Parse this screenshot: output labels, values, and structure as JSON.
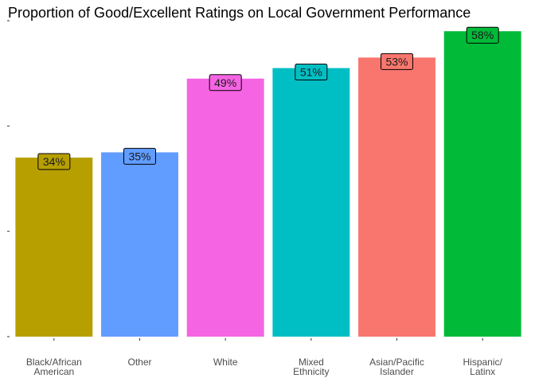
{
  "chart_data": {
    "type": "bar",
    "title": "Proportion of Good/Excellent Ratings on Local Government Performance",
    "xlabel": "",
    "ylabel": "",
    "ylim": [
      0,
      0.6
    ],
    "grid": false,
    "legend": "none",
    "categories": [
      [
        "Black/African",
        "American"
      ],
      [
        "Other"
      ],
      [
        "White"
      ],
      [
        "Mixed",
        "Ethnicity"
      ],
      [
        "Asian/Pacific",
        "Islander"
      ],
      [
        "Hispanic/",
        "Latinx"
      ]
    ],
    "values": [
      0.34,
      0.35,
      0.49,
      0.51,
      0.53,
      0.58
    ],
    "data_labels": [
      "34%",
      "35%",
      "49%",
      "51%",
      "53%",
      "58%"
    ],
    "colors": [
      "#B79F00",
      "#619CFF",
      "#F564E3",
      "#00BFC4",
      "#F8766D",
      "#00BA38"
    ]
  }
}
